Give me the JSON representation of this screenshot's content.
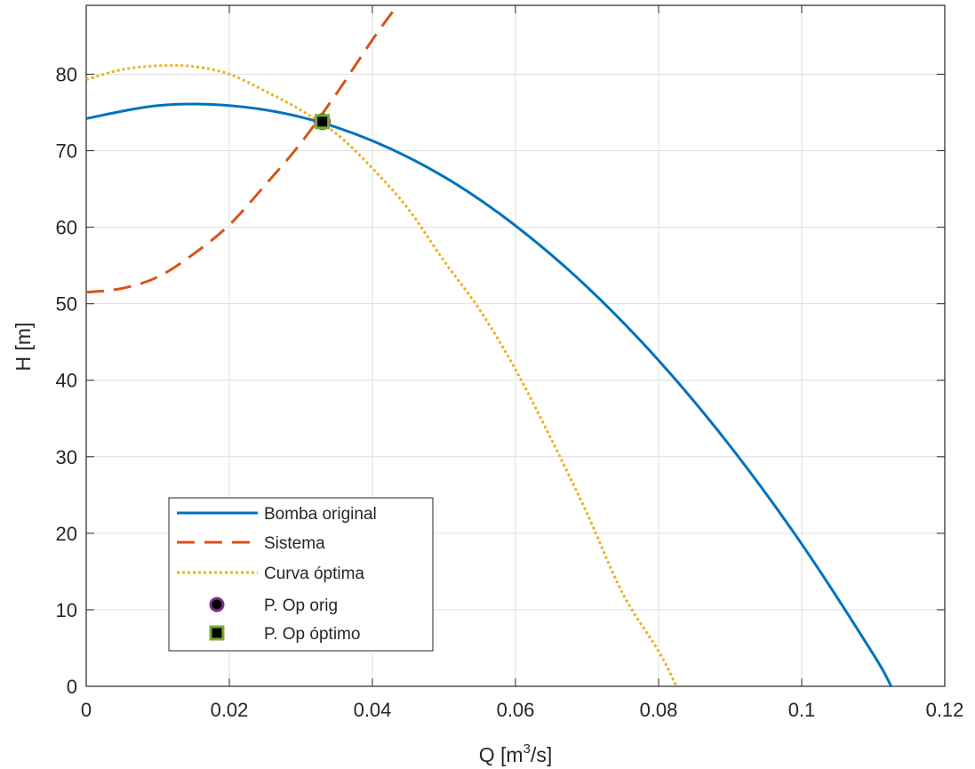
{
  "chart_data": {
    "type": "line",
    "title": "",
    "xlabel_prefix": "Q  [m",
    "xlabel_sup": "3",
    "xlabel_suffix": "/s]",
    "ylabel": "H [m]",
    "xlim": [
      0,
      0.12
    ],
    "ylim": [
      0,
      89
    ],
    "xticks": [
      0,
      0.02,
      0.04,
      0.06,
      0.08,
      0.1,
      0.12
    ],
    "xtick_labels": [
      "0",
      "0.02",
      "0.04",
      "0.06",
      "0.08",
      "0.1",
      "0.12"
    ],
    "yticks": [
      0,
      10,
      20,
      30,
      40,
      50,
      60,
      70,
      80
    ],
    "ytick_labels": [
      "0",
      "10",
      "20",
      "30",
      "40",
      "50",
      "60",
      "70",
      "80"
    ],
    "grid": true,
    "legend_position": "bottom-left",
    "series": [
      {
        "name": "Bomba original",
        "style": "solid",
        "color": "#0072BD",
        "x": [
          0,
          0.01,
          0.02,
          0.03,
          0.04,
          0.05,
          0.06,
          0.07,
          0.08,
          0.09,
          0.1,
          0.11,
          0.1125
        ],
        "y": [
          74.2,
          75.9,
          75.9,
          74.4,
          71.3,
          66.6,
          60.2,
          52.2,
          42.6,
          31.4,
          18.6,
          4.2,
          0
        ]
      },
      {
        "name": "Sistema",
        "style": "dashed",
        "color": "#D95319",
        "x": [
          0,
          0.005,
          0.01,
          0.015,
          0.02,
          0.025,
          0.03,
          0.035,
          0.04,
          0.0435
        ],
        "y": [
          51.5,
          52.0,
          53.5,
          56.5,
          60.3,
          65.5,
          71.0,
          77.5,
          84.5,
          89
        ]
      },
      {
        "name": "Curva óptima",
        "style": "dotted",
        "color": "#EDB120",
        "x": [
          0,
          0.005,
          0.01,
          0.015,
          0.02,
          0.025,
          0.03,
          0.035,
          0.04,
          0.045,
          0.05,
          0.055,
          0.06,
          0.065,
          0.07,
          0.075,
          0.08,
          0.0825
        ],
        "y": [
          79.3,
          80.6,
          81.1,
          81.0,
          80.0,
          77.8,
          75.3,
          72.2,
          67.7,
          62.4,
          55.6,
          49.2,
          41.4,
          32.3,
          22.6,
          12.1,
          4.6,
          0
        ]
      }
    ],
    "points": [
      {
        "name": "P. Op orig",
        "marker": "circle",
        "face": "#000000",
        "edge": "#7E2F8E",
        "x": 0.033,
        "y": 73.8
      },
      {
        "name": "P. Op óptimo",
        "marker": "square",
        "face": "#000000",
        "edge": "#77AC30",
        "x": 0.033,
        "y": 73.8
      }
    ],
    "legend": [
      "Bomba original",
      "Sistema",
      "Curva óptima",
      "P. Op orig",
      "P. Op óptimo"
    ]
  }
}
